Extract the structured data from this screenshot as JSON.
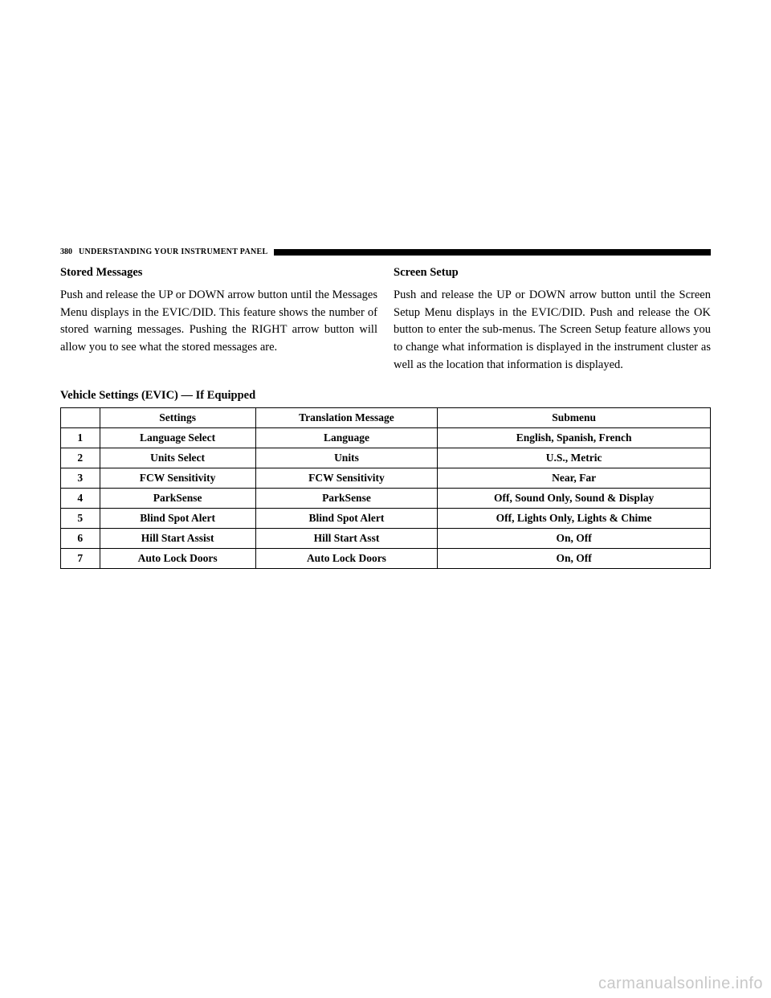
{
  "header": {
    "page_number": "380",
    "title": "UNDERSTANDING YOUR INSTRUMENT PANEL"
  },
  "left_section": {
    "heading": "Stored Messages",
    "body": "Push and release the UP or DOWN arrow button until the Messages Menu displays in the EVIC/DID. This feature shows the number of stored warning messages. Pushing the RIGHT arrow button will allow you to see what the stored messages are."
  },
  "right_section": {
    "heading": "Screen Setup",
    "body": "Push and release the UP or DOWN arrow button until the Screen Setup Menu displays in the EVIC/DID. Push and release the OK button to enter the sub-menus. The Screen Setup feature allows you to change what information is displayed in the instrument cluster as well as the location that information is displayed."
  },
  "table": {
    "title": "Vehicle Settings (EVIC) — If Equipped",
    "columns": [
      "",
      "Settings",
      "Translation Message",
      "Submenu"
    ],
    "rows": [
      [
        "1",
        "Language Select",
        "Language",
        "English, Spanish, French"
      ],
      [
        "2",
        "Units Select",
        "Units",
        "U.S., Metric"
      ],
      [
        "3",
        "FCW Sensitivity",
        "FCW Sensitivity",
        "Near, Far"
      ],
      [
        "4",
        "ParkSense",
        "ParkSense",
        "Off, Sound Only, Sound & Display"
      ],
      [
        "5",
        "Blind Spot Alert",
        "Blind Spot Alert",
        "Off, Lights Only, Lights & Chime"
      ],
      [
        "6",
        "Hill Start Assist",
        "Hill Start Asst",
        "On, Off"
      ],
      [
        "7",
        "Auto Lock Doors",
        "Auto Lock Doors",
        "On, Off"
      ]
    ]
  },
  "watermark": "carmanualsonline.info"
}
